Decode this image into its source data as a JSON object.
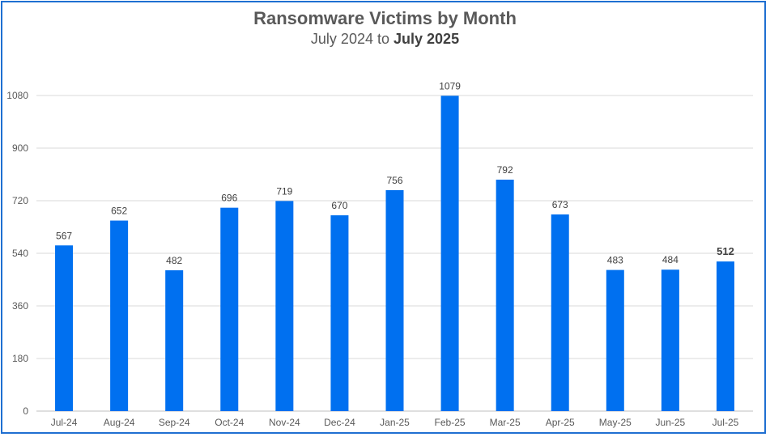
{
  "chart_data": {
    "type": "bar",
    "title": "Ransomware Victims by Month",
    "subtitle_prefix": "July 2024 to",
    "subtitle_bold": "July 2025",
    "categories": [
      "Jul-24",
      "Aug-24",
      "Sep-24",
      "Oct-24",
      "Nov-24",
      "Dec-24",
      "Jan-25",
      "Feb-25",
      "Mar-25",
      "Apr-25",
      "May-25",
      "Jun-25",
      "Jul-25"
    ],
    "values": [
      567,
      652,
      482,
      696,
      719,
      670,
      756,
      1079,
      792,
      673,
      483,
      484,
      512
    ],
    "ylim": [
      0,
      1080
    ],
    "yticks": [
      0,
      180,
      360,
      540,
      720,
      900,
      1080
    ],
    "grid": true,
    "bar_color": "#0070f0",
    "highlight_last_label": true
  }
}
